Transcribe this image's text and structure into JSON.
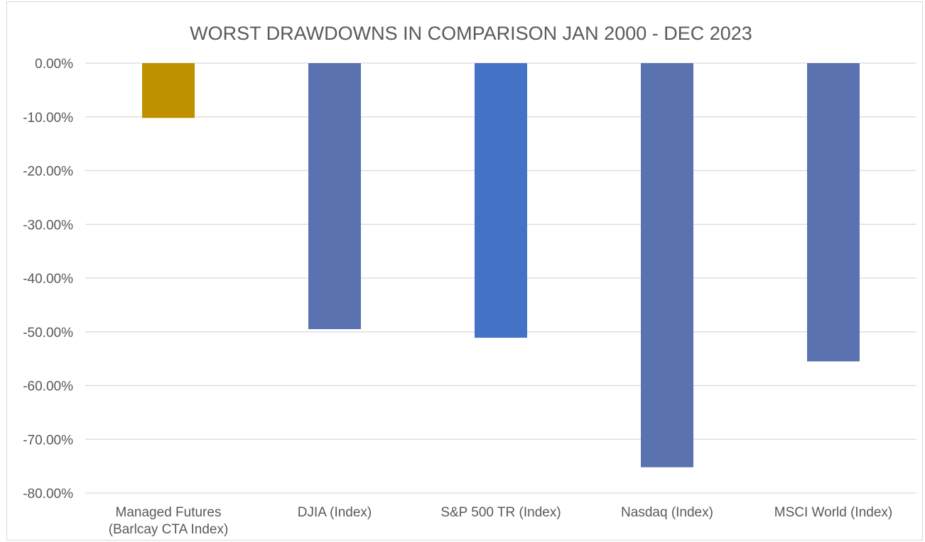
{
  "chart_data": {
    "type": "bar",
    "title": "WORST DRAWDOWNS IN COMPARISON JAN 2000 - DEC 2023",
    "xlabel": "",
    "ylabel": "",
    "categories": [
      [
        "Managed Futures",
        "(Barlcay CTA Index)"
      ],
      [
        "DJIA (Index)"
      ],
      [
        "S&P 500 TR (Index)"
      ],
      [
        "Nasdaq (Index)"
      ],
      [
        "MSCI World (Index)"
      ]
    ],
    "values": [
      -10.2,
      -49.5,
      -51.1,
      -75.2,
      -55.5
    ],
    "ylim": [
      -80,
      0
    ],
    "yticks": [
      0,
      -10,
      -20,
      -30,
      -40,
      -50,
      -60,
      -70,
      -80
    ],
    "ytick_labels": [
      "0.00%",
      "-10.00%",
      "-20.00%",
      "-30.00%",
      "-40.00%",
      "-50.00%",
      "-60.00%",
      "-70.00%",
      "-80.00%"
    ],
    "bar_colors": [
      "#bf9000",
      "#5a72b0",
      "#4472c4",
      "#5a72b0",
      "#5a72b0"
    ],
    "grid": true,
    "legend": "none"
  }
}
